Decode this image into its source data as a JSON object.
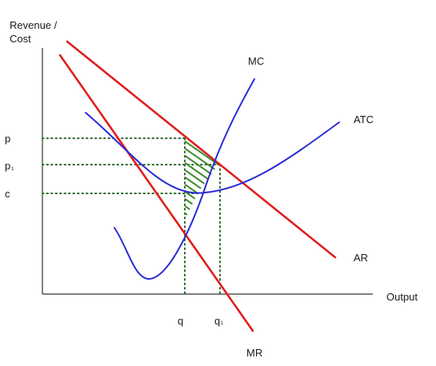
{
  "axes": {
    "y_label_line1": "Revenue /",
    "y_label_line2": "Cost",
    "x_label": "Output"
  },
  "price_levels": {
    "p": "p",
    "p1": "p",
    "p1_subscript": "1",
    "c": "c"
  },
  "quantities": {
    "q": "q",
    "q1": "q",
    "q1_subscript": "1"
  },
  "curves": {
    "mc": "MC",
    "atc": "ATC",
    "ar": "AR",
    "mr": "MR"
  },
  "colors": {
    "axis": "#333333",
    "revenue_curves": "#e01f1f",
    "cost_curves": "#2b2bd6",
    "guides": "#2f6b2f",
    "hatch": "#3a8a2a"
  }
}
